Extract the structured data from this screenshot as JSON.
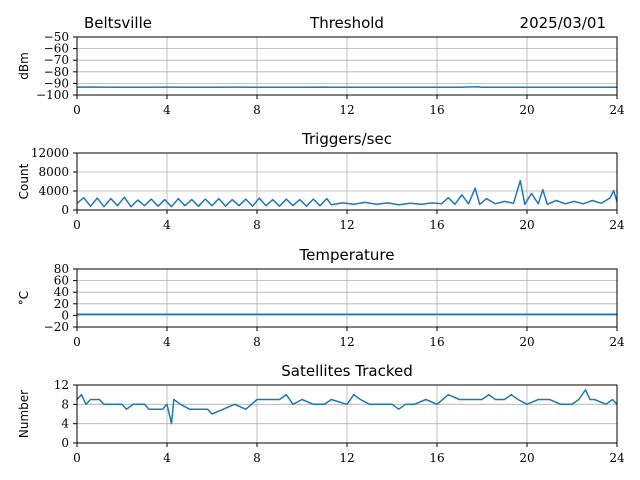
{
  "header": {
    "station": "Beltsville",
    "date": "2025/03/01"
  },
  "colors": {
    "series": "#1f77b4",
    "grid": "#b0b0b0"
  },
  "chart_data": [
    {
      "id": "threshold",
      "type": "line",
      "title": "Threshold",
      "ylabel": "dBm",
      "xlim": [
        0,
        24
      ],
      "ylim": [
        -100,
        -50
      ],
      "x_ticks": [
        "0",
        "4",
        "8",
        "12",
        "16",
        "20",
        "24"
      ],
      "y_ticks": [
        "−50",
        "−60",
        "−70",
        "−80",
        "−90",
        "−100"
      ],
      "y_tick_values": [
        -50,
        -60,
        -70,
        -80,
        -90,
        -100
      ],
      "grid": true,
      "points": [
        [
          0,
          -93.3
        ],
        [
          0.5,
          -93.1
        ],
        [
          1,
          -93.2
        ],
        [
          2,
          -93.3
        ],
        [
          3,
          -93.4
        ],
        [
          4,
          -93.2
        ],
        [
          5,
          -93.4
        ],
        [
          6,
          -93.3
        ],
        [
          7,
          -93.2
        ],
        [
          8,
          -93.4
        ],
        [
          9,
          -93.3
        ],
        [
          10,
          -93.3
        ],
        [
          11,
          -93.2
        ],
        [
          11.2,
          -93.3
        ],
        [
          12,
          -93.4
        ],
        [
          13,
          -93.4
        ],
        [
          14,
          -93.4
        ],
        [
          15,
          -93.4
        ],
        [
          16,
          -93.4
        ],
        [
          17,
          -93.4
        ],
        [
          17.8,
          -92.9
        ],
        [
          18,
          -93.4
        ],
        [
          19,
          -93.4
        ],
        [
          20,
          -93.4
        ],
        [
          21,
          -93.4
        ],
        [
          22,
          -93.4
        ],
        [
          23,
          -93.4
        ],
        [
          24,
          -93.4
        ]
      ]
    },
    {
      "id": "triggers",
      "type": "line",
      "title": "Triggers/sec",
      "ylabel": "Count",
      "xlim": [
        0,
        24
      ],
      "ylim": [
        0,
        12000
      ],
      "x_ticks": [
        "0",
        "4",
        "8",
        "12",
        "16",
        "20",
        "24"
      ],
      "y_ticks": [
        "12000",
        "8000",
        "4000",
        "0"
      ],
      "y_tick_values": [
        12000,
        8000,
        4000,
        0
      ],
      "grid": true,
      "points": [
        [
          0,
          1400
        ],
        [
          0.3,
          2600
        ],
        [
          0.6,
          800
        ],
        [
          0.9,
          2500
        ],
        [
          1.2,
          700
        ],
        [
          1.5,
          2400
        ],
        [
          1.8,
          900
        ],
        [
          2.1,
          2700
        ],
        [
          2.4,
          700
        ],
        [
          2.7,
          2100
        ],
        [
          3,
          900
        ],
        [
          3.3,
          2300
        ],
        [
          3.6,
          800
        ],
        [
          3.9,
          2200
        ],
        [
          4.2,
          700
        ],
        [
          4.5,
          2400
        ],
        [
          4.8,
          900
        ],
        [
          5.1,
          2200
        ],
        [
          5.4,
          800
        ],
        [
          5.7,
          2300
        ],
        [
          6,
          900
        ],
        [
          6.3,
          2400
        ],
        [
          6.6,
          800
        ],
        [
          6.9,
          2200
        ],
        [
          7.2,
          900
        ],
        [
          7.5,
          2300
        ],
        [
          7.8,
          800
        ],
        [
          8.1,
          2500
        ],
        [
          8.4,
          900
        ],
        [
          8.7,
          2200
        ],
        [
          9,
          800
        ],
        [
          9.3,
          2300
        ],
        [
          9.6,
          900
        ],
        [
          9.9,
          2200
        ],
        [
          10.2,
          800
        ],
        [
          10.5,
          2300
        ],
        [
          10.8,
          900
        ],
        [
          11.1,
          2400
        ],
        [
          11.3,
          1100
        ],
        [
          11.8,
          1500
        ],
        [
          12.3,
          1200
        ],
        [
          12.8,
          1600
        ],
        [
          13.3,
          1200
        ],
        [
          13.8,
          1500
        ],
        [
          14.3,
          1100
        ],
        [
          14.8,
          1400
        ],
        [
          15.3,
          1200
        ],
        [
          15.8,
          1500
        ],
        [
          16.2,
          1300
        ],
        [
          16.5,
          2600
        ],
        [
          16.8,
          1200
        ],
        [
          17.1,
          3200
        ],
        [
          17.4,
          1300
        ],
        [
          17.7,
          4600
        ],
        [
          17.9,
          1200
        ],
        [
          18.2,
          2400
        ],
        [
          18.6,
          1300
        ],
        [
          19,
          1800
        ],
        [
          19.4,
          1400
        ],
        [
          19.7,
          6200
        ],
        [
          19.9,
          1200
        ],
        [
          20.2,
          3500
        ],
        [
          20.5,
          1300
        ],
        [
          20.7,
          4300
        ],
        [
          20.9,
          1200
        ],
        [
          21.3,
          2000
        ],
        [
          21.7,
          1300
        ],
        [
          22.1,
          1800
        ],
        [
          22.5,
          1300
        ],
        [
          22.9,
          2000
        ],
        [
          23.3,
          1400
        ],
        [
          23.7,
          2600
        ],
        [
          23.85,
          4100
        ],
        [
          24,
          1700
        ]
      ]
    },
    {
      "id": "temperature",
      "type": "line",
      "title": "Temperature",
      "ylabel": "°C",
      "xlim": [
        0,
        24
      ],
      "ylim": [
        -20,
        80
      ],
      "x_ticks": [
        "0",
        "4",
        "8",
        "12",
        "16",
        "20",
        "24"
      ],
      "y_ticks": [
        "80",
        "60",
        "40",
        "20",
        "0",
        "−20"
      ],
      "y_tick_values": [
        80,
        60,
        40,
        20,
        0,
        -20
      ],
      "grid": true,
      "points": [
        [
          0,
          2
        ],
        [
          24,
          2
        ]
      ]
    },
    {
      "id": "satellites",
      "type": "line",
      "title": "Satellites Tracked",
      "ylabel": "Number",
      "xlim": [
        0,
        24
      ],
      "ylim": [
        0,
        12
      ],
      "x_ticks": [
        "0",
        "4",
        "8",
        "12",
        "16",
        "20",
        "24"
      ],
      "y_ticks": [
        "12",
        "8",
        "4",
        "0"
      ],
      "y_tick_values": [
        12,
        8,
        4,
        0
      ],
      "grid": true,
      "points": [
        [
          0,
          9
        ],
        [
          0.2,
          10
        ],
        [
          0.4,
          8
        ],
        [
          0.6,
          9
        ],
        [
          1,
          9
        ],
        [
          1.2,
          8
        ],
        [
          2,
          8
        ],
        [
          2.2,
          7
        ],
        [
          2.5,
          8
        ],
        [
          3,
          8
        ],
        [
          3.2,
          7
        ],
        [
          3.8,
          7
        ],
        [
          4,
          8
        ],
        [
          4.2,
          4
        ],
        [
          4.3,
          9
        ],
        [
          4.6,
          8
        ],
        [
          5,
          7
        ],
        [
          5.8,
          7
        ],
        [
          6,
          6
        ],
        [
          6.5,
          7
        ],
        [
          7,
          8
        ],
        [
          7.5,
          7
        ],
        [
          8,
          9
        ],
        [
          9,
          9
        ],
        [
          9.3,
          10
        ],
        [
          9.6,
          8
        ],
        [
          10,
          9
        ],
        [
          10.5,
          8
        ],
        [
          11,
          8
        ],
        [
          11.3,
          9
        ],
        [
          12,
          8
        ],
        [
          12.3,
          10
        ],
        [
          12.6,
          9
        ],
        [
          13,
          8
        ],
        [
          14,
          8
        ],
        [
          14.3,
          7
        ],
        [
          14.6,
          8
        ],
        [
          15,
          8
        ],
        [
          15.5,
          9
        ],
        [
          16,
          8
        ],
        [
          16.5,
          10
        ],
        [
          17,
          9
        ],
        [
          18,
          9
        ],
        [
          18.3,
          10
        ],
        [
          18.6,
          9
        ],
        [
          19,
          9
        ],
        [
          19.3,
          10
        ],
        [
          19.6,
          9
        ],
        [
          20,
          8
        ],
        [
          20.5,
          9
        ],
        [
          21,
          9
        ],
        [
          21.5,
          8
        ],
        [
          22,
          8
        ],
        [
          22.3,
          9
        ],
        [
          22.6,
          11
        ],
        [
          22.8,
          9
        ],
        [
          23,
          9
        ],
        [
          23.5,
          8
        ],
        [
          23.8,
          9
        ],
        [
          24,
          8
        ]
      ]
    }
  ]
}
